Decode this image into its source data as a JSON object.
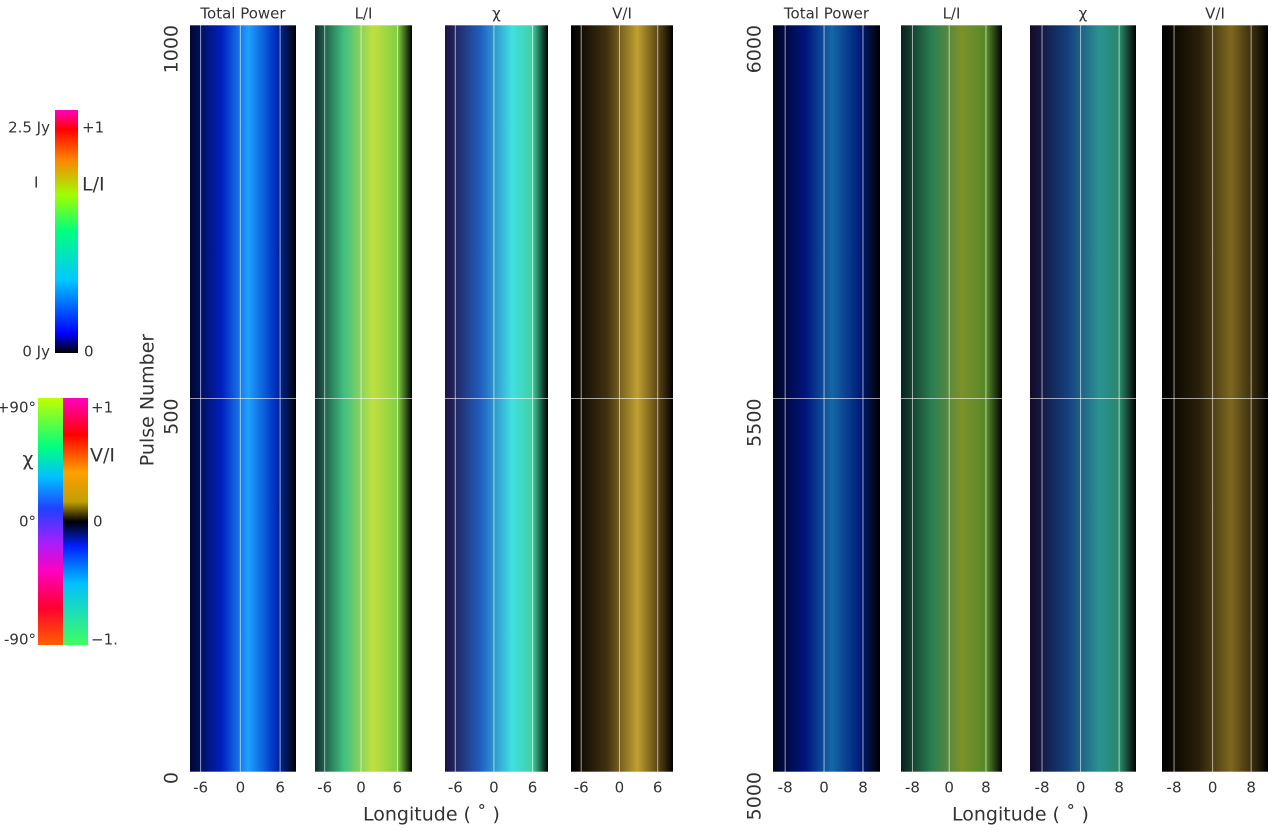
{
  "colorbars": {
    "intensity": {
      "label": "I",
      "top": "2.5 Jy",
      "bottom": "0 Jy"
    },
    "fraction": {
      "label": "L/I",
      "top": "+1",
      "bottom": "0"
    },
    "angle": {
      "label": "χ",
      "top": "+90°",
      "middle": "0°",
      "bottom": "-90°"
    },
    "circular": {
      "label": "V/I",
      "top": "+1",
      "middle": "0",
      "bottom": "−1."
    }
  },
  "chart_data": [
    {
      "type": "heatmap",
      "ylabel": "Pulse Number",
      "xlabel": "Longitude ( ˚ )",
      "panels": [
        "Total Power",
        "L/I",
        "χ",
        "V/I"
      ],
      "xlim": [
        -7.6,
        8.4
      ],
      "xticks": [
        -6,
        0,
        6
      ],
      "ylim": [
        0,
        1000
      ],
      "yticks": [
        0,
        500,
        1000
      ]
    },
    {
      "type": "heatmap",
      "xlabel": "Longitude ( ˚ )",
      "panels": [
        "Total Power",
        "L/I",
        "χ",
        "V/I"
      ],
      "xlim": [
        -10.5,
        11.5
      ],
      "xticks": [
        -8,
        0,
        8
      ],
      "ylim": [
        5000,
        6000
      ],
      "yticks": [
        5000,
        5500,
        6000
      ]
    }
  ]
}
